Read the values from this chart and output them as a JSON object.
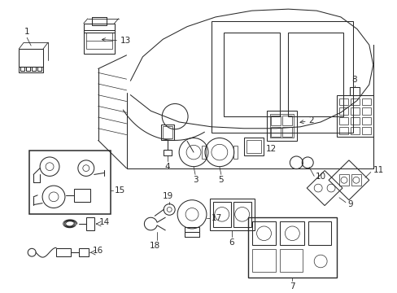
{
  "bg_color": "#ffffff",
  "line_color": "#2a2a2a",
  "fig_width": 4.89,
  "fig_height": 3.6,
  "dpi": 100,
  "label_fontsize": 7.5,
  "arrow_lw": 0.55,
  "part_lw": 0.75
}
